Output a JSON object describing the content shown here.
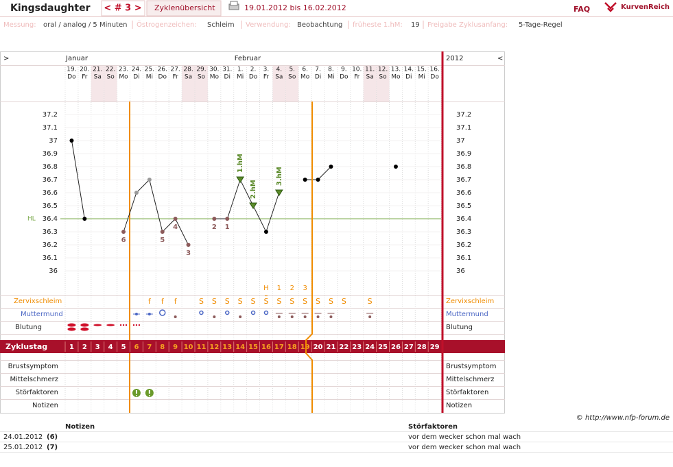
{
  "header": {
    "name": "Kingsdaughter",
    "cycle_nav": "< # 3 >",
    "overview_link": "Zyklenübersicht",
    "date_range": "19.01.2012 bis 16.02.2012",
    "faq": "FAQ",
    "logo": "KurvenReich"
  },
  "settings": [
    {
      "label": "Messung:",
      "value": "oral / analog / 5 Minuten"
    },
    {
      "label": "Östrogenzeichen:",
      "value": "Schleim"
    },
    {
      "label": "Verwendung:",
      "value": "Beobachtung"
    },
    {
      "label": "früheste 1.hM:",
      "value": 19
    },
    {
      "label": "Freigabe Zyklusanfang:",
      "value": "5-Tage-Regel"
    }
  ],
  "calendar": {
    "prev": ">",
    "next": "<",
    "year": 2012,
    "month_labels": [
      "Januar",
      null,
      null,
      null,
      null,
      null,
      null,
      null,
      null,
      null,
      null,
      null,
      null,
      "Februar",
      null,
      null,
      null,
      null,
      null,
      null,
      null,
      null,
      null,
      null,
      null,
      null,
      null,
      null,
      null
    ],
    "dates": [
      "19.",
      "20.",
      "21.",
      "22.",
      "23.",
      "24.",
      "25.",
      "26.",
      "27.",
      "28.",
      "29.",
      "30.",
      "31.",
      "1.",
      "2.",
      "3.",
      "4.",
      "5.",
      "6.",
      "7.",
      "8.",
      "9.",
      "10.",
      "11.",
      "12.",
      "13.",
      "14.",
      "15.",
      "16."
    ],
    "weekdays": [
      "Do",
      "Fr",
      "Sa",
      "So",
      "Mo",
      "Di",
      "Mi",
      "Do",
      "Fr",
      "Sa",
      "So",
      "Mo",
      "Di",
      "Mi",
      "Do",
      "Fr",
      "Sa",
      "So",
      "Mo",
      "Di",
      "Mi",
      "Do",
      "Fr",
      "Sa",
      "So",
      "Mo",
      "Di",
      "Mi",
      "Do"
    ]
  },
  "chart_data": {
    "type": "line",
    "x": [
      1,
      2,
      3,
      4,
      5,
      6,
      7,
      8,
      9,
      10,
      11,
      12,
      13,
      14,
      15,
      16,
      17,
      18,
      19,
      20,
      21,
      22,
      23,
      24,
      25,
      26,
      27,
      28,
      29
    ],
    "values": [
      37.0,
      36.4,
      null,
      null,
      36.3,
      36.6,
      36.7,
      36.3,
      36.4,
      36.2,
      null,
      36.4,
      36.4,
      36.7,
      36.5,
      36.3,
      36.6,
      null,
      36.7,
      36.7,
      36.8,
      null,
      null,
      null,
      null,
      36.8,
      null,
      null,
      null
    ],
    "point_colors": [
      "#000",
      "#000",
      null,
      null,
      "#8c5a5a",
      "#999",
      "#999",
      "#8c5a5a",
      "#8c5a5a",
      "#8c5a5a",
      null,
      "#8c5a5a",
      "#8c5a5a",
      "#5b8a2a",
      "#5b8a2a",
      "#000",
      "#5b8a2a",
      null,
      "#000",
      "#000",
      "#000",
      null,
      null,
      null,
      null,
      "#000",
      null,
      null,
      null
    ],
    "low_labels": [
      null,
      null,
      null,
      null,
      6,
      null,
      null,
      5,
      4,
      3,
      null,
      2,
      1,
      null,
      null,
      null,
      null,
      null,
      null,
      null,
      null,
      null,
      null,
      null,
      null,
      null,
      null,
      null,
      null
    ],
    "hm_labels": [
      null,
      null,
      null,
      null,
      null,
      null,
      null,
      null,
      null,
      null,
      null,
      null,
      null,
      "1.hM",
      "2.hM",
      null,
      "3.hM",
      null,
      null,
      null,
      null,
      null,
      null,
      null,
      null,
      null,
      null,
      null,
      null
    ],
    "line_color": "#222",
    "ylim": [
      35.9,
      37.3
    ],
    "yticks": [
      36,
      36.1,
      36.2,
      36.3,
      36.4,
      36.5,
      36.6,
      36.7,
      36.8,
      36.9,
      37,
      37.1,
      37.2
    ],
    "hl_label": "HL",
    "hl_value": 36.4,
    "hl_color": "#7aa84a"
  },
  "rows": {
    "signs": [
      null,
      null,
      null,
      null,
      null,
      null,
      null,
      null,
      null,
      null,
      null,
      null,
      null,
      null,
      null,
      "H",
      1,
      2,
      3,
      null,
      null,
      null,
      null,
      null,
      null,
      null,
      null,
      null,
      null
    ],
    "cervical_label": "Zervixschleim",
    "cervical": [
      null,
      null,
      null,
      null,
      null,
      null,
      "f",
      "f",
      "f",
      null,
      "S",
      "S",
      "S",
      "S",
      "S",
      "S",
      "S",
      "S",
      "S",
      "S",
      "S",
      "S",
      null,
      "S",
      null,
      null,
      null,
      null,
      null
    ],
    "cervix_label": "Muttermund",
    "bleeding_label": "Blutung",
    "cycle_day_label": "Zyklustag",
    "breast_label": "Brustsymptom",
    "pain_label": "Mittelschmerz",
    "disturb_label": "Störfaktoren",
    "notes_label": "Notizen"
  },
  "footer": {
    "copyright": "© http://www.nfp-forum.de",
    "headers": [
      "Notizen",
      "Störfaktoren"
    ],
    "rows": [
      [
        "24.01.2012",
        "(6)",
        "vor dem wecker schon mal wach"
      ],
      [
        "25.01.2012",
        "(7)",
        "vor dem wecker schon mal wach"
      ]
    ]
  }
}
